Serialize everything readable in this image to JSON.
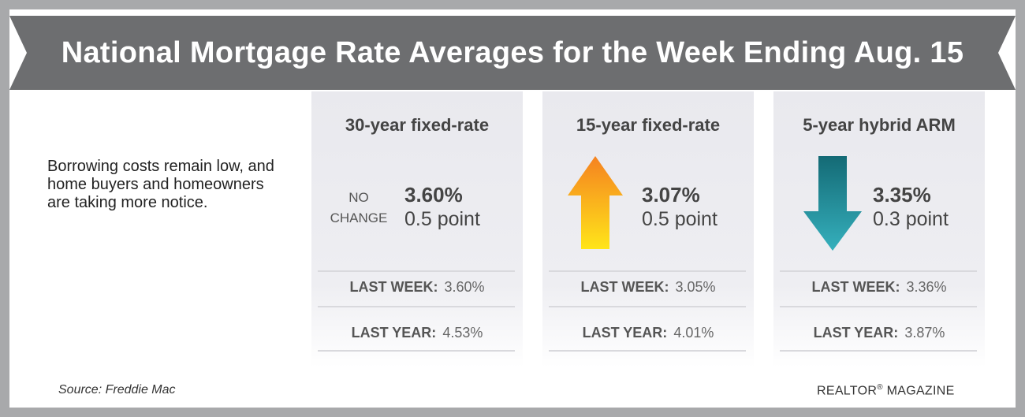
{
  "title": "National Mortgage Rate Averages for the Week Ending Aug. 15",
  "intro": "Borrowing costs remain low, and home buyers and homeowners are taking more notice.",
  "source": "Source: Freddie Mac",
  "brand_name": "REALTOR",
  "brand_reg": "®",
  "brand_suffix": " MAGAZINE",
  "colors": {
    "banner": "#6d6e70",
    "frame": "#a8a9ab",
    "arrow_up_top": "#f58220",
    "arrow_up_bottom": "#ffe51a",
    "arrow_down_top": "#146a75",
    "arrow_down_bottom": "#35b0bd"
  },
  "chart_data": {
    "type": "table",
    "categories": [
      "30-year fixed-rate",
      "15-year fixed-rate",
      "5-year hybrid ARM"
    ],
    "items": [
      {
        "name": "30-year fixed-rate",
        "rate": "3.60%",
        "change": "0.5 point",
        "direction": "none",
        "indicator_text": [
          "NO",
          "CHANGE"
        ],
        "last_week_label": "LAST WEEK:",
        "last_week": "3.60%",
        "last_year_label": "LAST YEAR:",
        "last_year": "4.53%"
      },
      {
        "name": "15-year fixed-rate",
        "rate": "3.07%",
        "change": "0.5 point",
        "direction": "up",
        "icon": "up-arrow-icon",
        "last_week_label": "LAST WEEK:",
        "last_week": "3.05%",
        "last_year_label": "LAST YEAR:",
        "last_year": "4.01%"
      },
      {
        "name": "5-year hybrid ARM",
        "rate": "3.35%",
        "change": "0.3 point",
        "direction": "down",
        "icon": "down-arrow-icon",
        "last_week_label": "LAST WEEK:",
        "last_week": "3.36%",
        "last_year_label": "LAST YEAR:",
        "last_year": "3.87%"
      }
    ]
  }
}
